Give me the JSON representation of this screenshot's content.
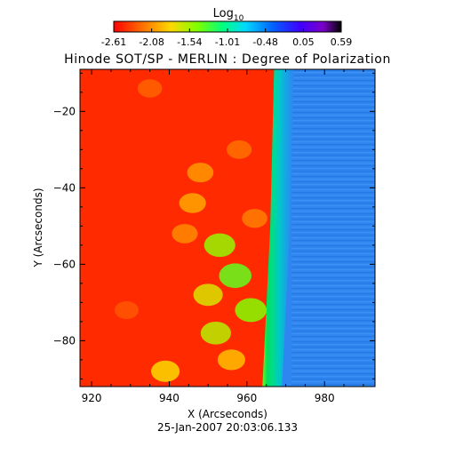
{
  "chart_data": {
    "type": "heatmap",
    "title": "Hinode SOT/SP - MERLIN : Degree of Polarization",
    "xlabel": "X (Arcseconds)",
    "ylabel": "Y (Arcseconds)",
    "timestamp": "25-Jan-2007 20:03:06.133",
    "colorbar": {
      "label_main": "Log",
      "label_sub": "10",
      "ticks": [
        "-2.61",
        "-2.08",
        "-1.54",
        "-1.01",
        "-0.48",
        "0.05",
        "0.59"
      ],
      "range": [
        -2.61,
        0.59
      ],
      "colormap": "rainbow (red to violet to black)"
    },
    "xlim": [
      917,
      993
    ],
    "ylim": [
      -92,
      -9
    ],
    "x_ticks": [
      {
        "value": 920,
        "label": "920"
      },
      {
        "value": 940,
        "label": "940"
      },
      {
        "value": 960,
        "label": "960"
      },
      {
        "value": 980,
        "label": "980"
      }
    ],
    "y_ticks": [
      {
        "value": -20,
        "label": "−20"
      },
      {
        "value": -40,
        "label": "−40"
      },
      {
        "value": -60,
        "label": "−60"
      },
      {
        "value": -80,
        "label": "−80"
      }
    ],
    "limb_x_at_y": [
      {
        "y": -9,
        "x": 967
      },
      {
        "y": -50,
        "x": 966
      },
      {
        "y": -92,
        "x": 964
      }
    ],
    "regions": [
      {
        "name": "solar-disk",
        "log_value": -2.61,
        "color": "#ff2a00"
      },
      {
        "name": "limb-band",
        "log_value": -1.2,
        "color": "#00e060"
      },
      {
        "name": "off-limb",
        "log_value": -0.6,
        "color": "#2f86f0"
      }
    ],
    "features": [
      {
        "x": 957,
        "y": -63,
        "log_value": -1.35
      },
      {
        "x": 953,
        "y": -55,
        "log_value": -1.5
      },
      {
        "x": 961,
        "y": -72,
        "log_value": -1.45
      },
      {
        "x": 950,
        "y": -68,
        "log_value": -1.7
      },
      {
        "x": 956,
        "y": -85,
        "log_value": -1.9
      },
      {
        "x": 946,
        "y": -44,
        "log_value": -2.0
      },
      {
        "x": 948,
        "y": -36,
        "log_value": -2.05
      },
      {
        "x": 939,
        "y": -88,
        "log_value": -1.8
      },
      {
        "x": 944,
        "y": -52,
        "log_value": -2.1
      },
      {
        "x": 962,
        "y": -48,
        "log_value": -2.15
      },
      {
        "x": 958,
        "y": -30,
        "log_value": -2.2
      },
      {
        "x": 935,
        "y": -14,
        "log_value": -2.25
      },
      {
        "x": 929,
        "y": -72,
        "log_value": -2.3
      },
      {
        "x": 952,
        "y": -78,
        "log_value": -1.6
      }
    ]
  }
}
